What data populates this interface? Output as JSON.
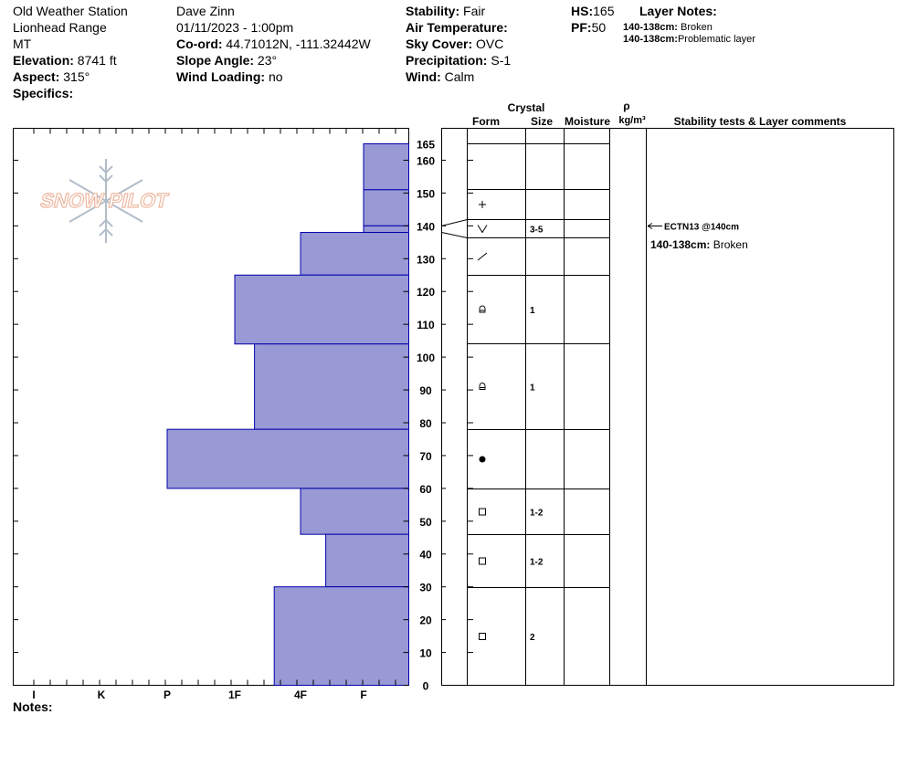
{
  "header": {
    "col1": {
      "station": "Old Weather Station",
      "range": "Lionhead Range",
      "state": "MT",
      "elevation_label": "Elevation:",
      "elevation_value": " 8741 ft",
      "aspect_label": "Aspect:",
      "aspect_value": " 315°",
      "specifics_label": "Specifics:"
    },
    "col2": {
      "observer": "Dave Zinn",
      "datetime": "01/11/2023 - 1:00pm",
      "coord_label": "Co-ord:",
      "coord_value": " 44.71012N, -111.32442W",
      "slope_label": "Slope Angle:",
      "slope_value": " 23°",
      "wind_loading_label": "Wind Loading:",
      "wind_loading_value": " no"
    },
    "col3": {
      "stability_label": "Stability:",
      "stability_value": " Fair",
      "air_temp_label": "Air Temperature:",
      "sky_label": "Sky Cover:",
      "sky_value": " OVC",
      "precip_label": "Precipitation:",
      "precip_value": " S-1",
      "wind_label": "Wind:",
      "wind_value": "  Calm"
    },
    "col4": {
      "hs_label": "HS:",
      "hs_value": "165",
      "pf_label": "PF:",
      "pf_value": "50"
    },
    "layer_notes": {
      "title": "Layer Notes:",
      "lines": [
        {
          "label": "140-138cm:",
          "value": " Broken"
        },
        {
          "label": "140-138cm:",
          "value": "Problematic layer"
        }
      ]
    }
  },
  "logo_text": "SNOW PILOT",
  "column_headers": {
    "crystal": "Crystal",
    "form": "Form",
    "size": "Size",
    "moisture": "Moisture",
    "rho": "ρ",
    "density_unit": "kg/m³",
    "stability": "Stability tests & Layer comments"
  },
  "notes_label": "Notes:",
  "colors": {
    "layer_fill": "#9999d6",
    "layer_stroke": "#0000aa"
  },
  "chart_data": {
    "type": "bar",
    "y_axis": {
      "range": [
        0,
        165
      ],
      "ticks": [
        0,
        10,
        20,
        30,
        40,
        50,
        60,
        70,
        80,
        90,
        100,
        110,
        120,
        130,
        140,
        150,
        160,
        165
      ]
    },
    "hardness_axis": {
      "labels": [
        "I",
        "K",
        "P",
        "1F",
        "4F",
        "F"
      ]
    },
    "layers": [
      {
        "top": 165,
        "bottom": 151,
        "hardness_rank": 1.0
      },
      {
        "top": 151,
        "bottom": 140,
        "hardness_rank": 1.0
      },
      {
        "top": 140,
        "bottom": 138,
        "hardness_rank": 1.0
      },
      {
        "top": 138,
        "bottom": 125,
        "hardness_rank": 2.0
      },
      {
        "top": 125,
        "bottom": 104,
        "hardness_rank": 3.0
      },
      {
        "top": 104,
        "bottom": 78,
        "hardness_rank": 2.7
      },
      {
        "top": 78,
        "bottom": 60,
        "hardness_rank": 4.0
      },
      {
        "top": 60,
        "bottom": 46,
        "hardness_rank": 2.0
      },
      {
        "top": 46,
        "bottom": 30,
        "hardness_rank": 1.6
      },
      {
        "top": 30,
        "bottom": 0,
        "hardness_rank": 2.4
      }
    ],
    "crystal_rows": [
      {
        "top": 165,
        "bottom": 151,
        "form": "",
        "size": ""
      },
      {
        "top": 151,
        "bottom": 140,
        "form": "+",
        "size": ""
      },
      {
        "top": 140,
        "bottom": 136,
        "form": "V",
        "size": "3-5"
      },
      {
        "top": 136,
        "bottom": 125,
        "form": "/",
        "size": ""
      },
      {
        "top": 125,
        "bottom": 104,
        "form": "facet-round",
        "size": "1"
      },
      {
        "top": 104,
        "bottom": 78,
        "form": "facet-round",
        "size": "1"
      },
      {
        "top": 78,
        "bottom": 60,
        "form": "dot",
        "size": ""
      },
      {
        "top": 60,
        "bottom": 46,
        "form": "square",
        "size": "1-2"
      },
      {
        "top": 46,
        "bottom": 30,
        "form": "square",
        "size": "1-2"
      },
      {
        "top": 30,
        "bottom": 0,
        "form": "square",
        "size": "2"
      }
    ],
    "stability_tests": [
      {
        "depth": 140,
        "text": "ECTN13 @140cm"
      }
    ],
    "layer_comments": [
      {
        "label": "140-138cm:",
        "value": " Broken"
      }
    ]
  }
}
